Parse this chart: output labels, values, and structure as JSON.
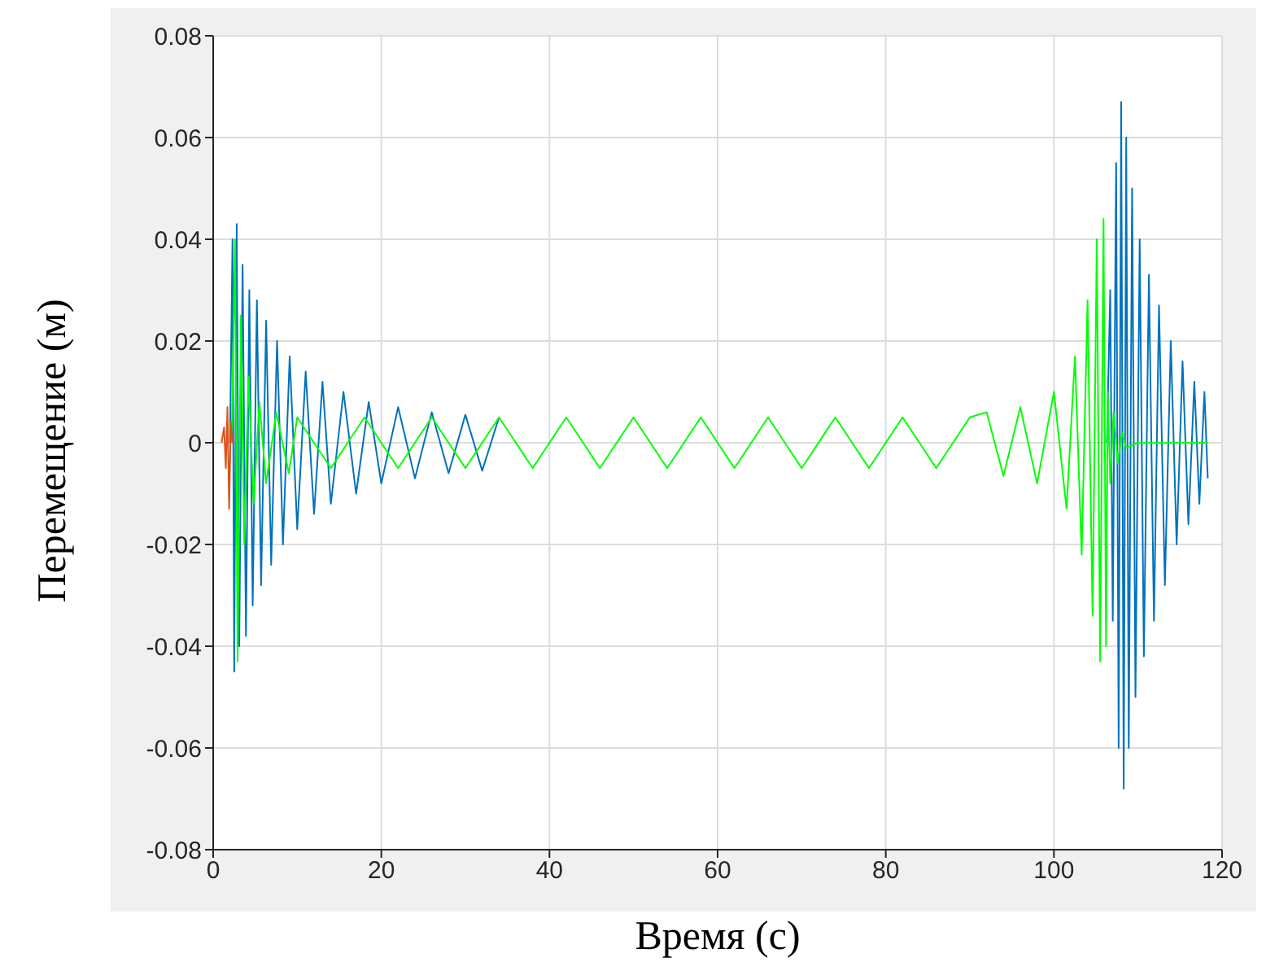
{
  "chart_data": {
    "type": "line",
    "xlabel": "Время (с)",
    "ylabel": "Перемещение (м)",
    "xlim": [
      0,
      120
    ],
    "xticks": [
      0,
      20,
      40,
      60,
      80,
      100,
      120
    ],
    "ylim": [
      -0.08,
      0.08
    ],
    "yticks": [
      -0.08,
      -0.06,
      -0.04,
      -0.02,
      0,
      0.02,
      0.04,
      0.06,
      0.08
    ],
    "grid": true,
    "marker": "none",
    "line_style": "solid",
    "series": [
      {
        "color": "#0072bd",
        "x": [
          2.0,
          2.3,
          2.5,
          2.8,
          3.1,
          3.5,
          3.9,
          4.3,
          4.7,
          5.2,
          5.7,
          6.3,
          6.9,
          7.6,
          8.3,
          9.1,
          10,
          11,
          12,
          13,
          14,
          15.5,
          17,
          18.5,
          20,
          22,
          24,
          26,
          28,
          30,
          32,
          34,
          60,
          106.3,
          106.7,
          107.0,
          107.4,
          107.7,
          108.0,
          108.3,
          108.6,
          108.9,
          109.3,
          109.7,
          110.2,
          110.7,
          111.3,
          111.9,
          112.5,
          113.2,
          113.9,
          114.6,
          115.3,
          116,
          116.7,
          117.3,
          117.9,
          118.3
        ],
        "values": [
          0,
          0.04,
          -0.045,
          0.043,
          -0.04,
          0.035,
          -0.038,
          0.03,
          -0.032,
          0.028,
          -0.028,
          0.024,
          -0.024,
          0.02,
          -0.02,
          0.017,
          -0.017,
          0.014,
          -0.014,
          0.012,
          -0.012,
          0.01,
          -0.01,
          0.008,
          -0.008,
          0.007,
          -0.007,
          0.006,
          -0.006,
          0.0055,
          -0.0055,
          0.005,
          null,
          0,
          0.03,
          -0.035,
          0.055,
          -0.06,
          0.067,
          -0.068,
          0.06,
          -0.06,
          0.05,
          -0.05,
          0.04,
          -0.042,
          0.033,
          -0.035,
          0.027,
          -0.028,
          0.02,
          -0.02,
          0.016,
          -0.016,
          0.012,
          -0.012,
          0.01,
          -0.007
        ]
      },
      {
        "color": "#00ff00",
        "x": [
          2.2,
          2.6,
          2.9,
          3.3,
          3.7,
          4.2,
          4.8,
          5.5,
          6.3,
          7.5,
          9,
          10,
          14,
          18,
          22,
          26,
          30,
          34,
          38,
          42,
          46,
          50,
          54,
          58,
          62,
          66,
          70,
          74,
          78,
          82,
          86,
          90,
          92,
          94,
          96,
          98,
          100,
          101.5,
          102.5,
          103.3,
          104,
          104.6,
          105.1,
          105.5,
          105.9,
          106.2,
          106.4,
          106.7,
          107.1,
          107.6,
          108.1,
          108.6,
          110,
          118.3
        ],
        "values": [
          0,
          0.04,
          -0.043,
          0.025,
          -0.02,
          0.013,
          -0.012,
          0.008,
          -0.008,
          0.006,
          -0.006,
          0.005,
          -0.005,
          0.005,
          -0.005,
          0.005,
          -0.005,
          0.005,
          -0.005,
          0.005,
          -0.005,
          0.005,
          -0.005,
          0.005,
          -0.005,
          0.005,
          -0.005,
          0.005,
          -0.005,
          0.005,
          -0.005,
          0.005,
          0.006,
          -0.0065,
          0.007,
          -0.008,
          0.01,
          -0.013,
          0.017,
          -0.022,
          0.028,
          -0.034,
          0.04,
          -0.043,
          0.044,
          -0.04,
          0.01,
          -0.008,
          0.006,
          -0.004,
          0.002,
          -0.001,
          0,
          0
        ]
      },
      {
        "color": "#d95319",
        "x": [
          1.0,
          1.3,
          1.5,
          1.7,
          1.9,
          2.1,
          2.3
        ],
        "values": [
          0,
          0.003,
          -0.005,
          0.007,
          -0.013,
          0.004,
          0
        ]
      }
    ]
  }
}
